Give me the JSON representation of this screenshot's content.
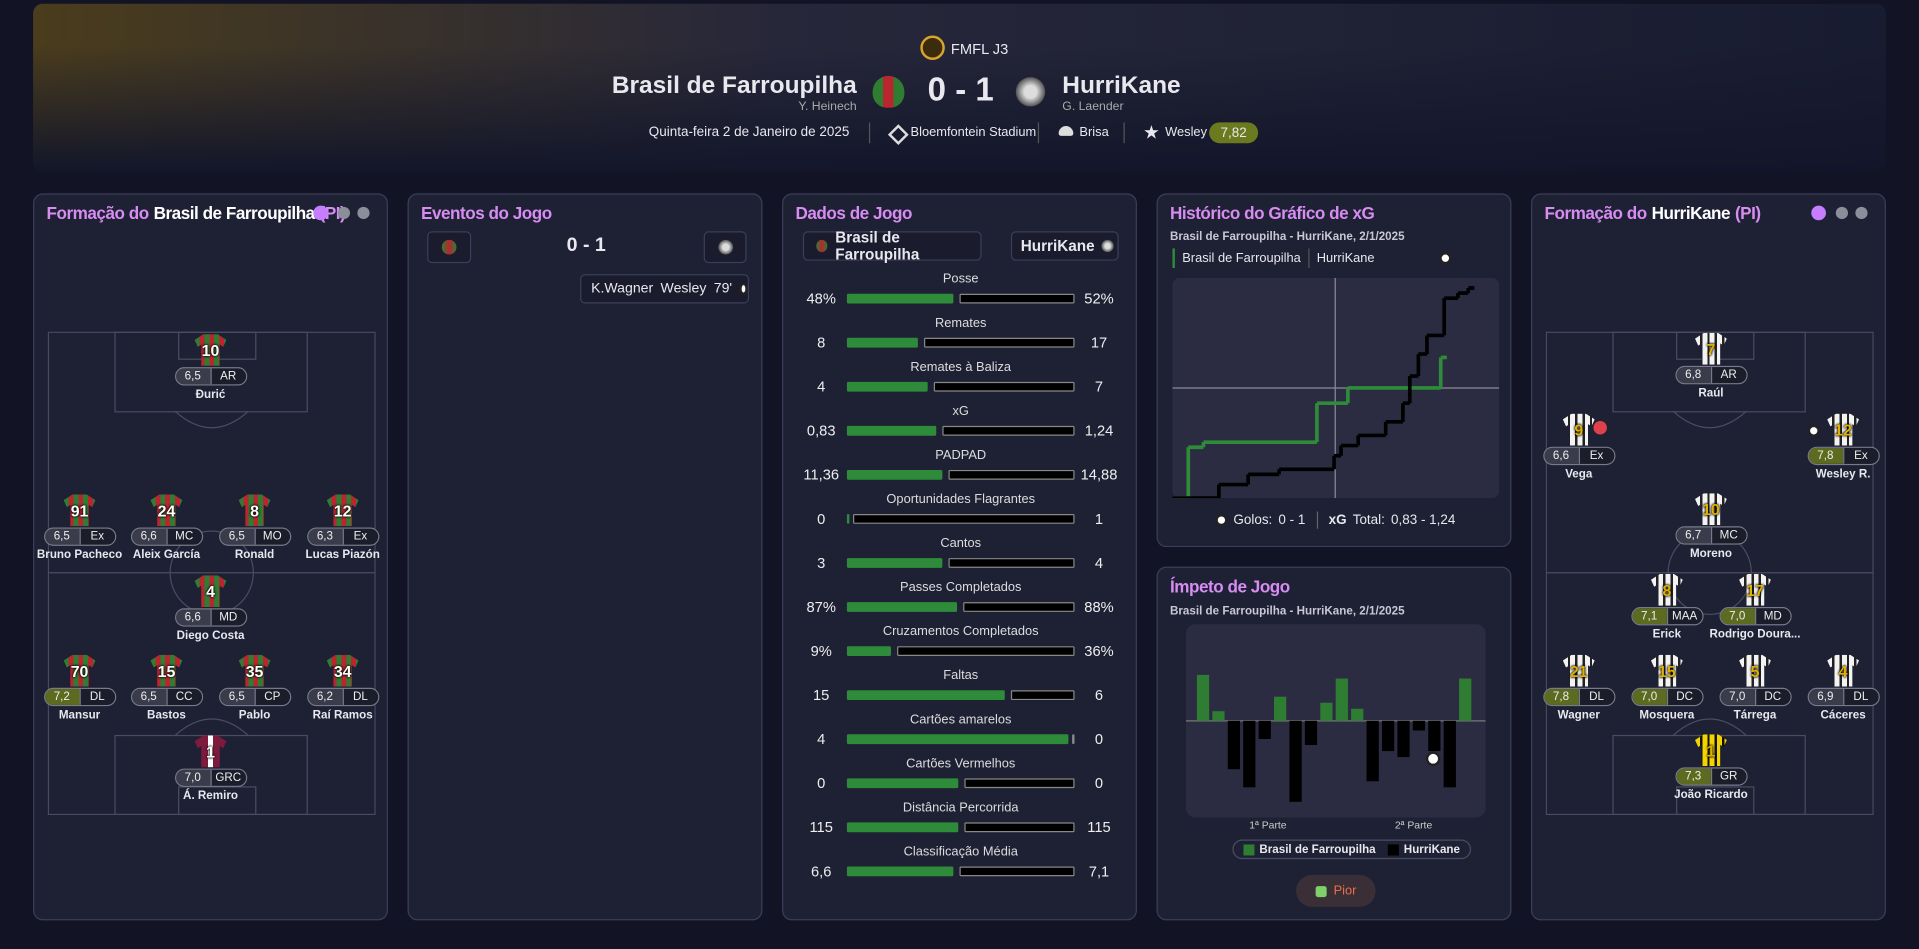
{
  "header": {
    "competition": "FMFL J3",
    "home_team": "Brasil de Farroupilha",
    "home_manager": "Y. Heinech",
    "score": "0 - 1",
    "away_team": "HurriKane",
    "away_manager": "G. Laender",
    "date": "Quinta-feira 2 de Janeiro de 2025",
    "stadium": "Bloemfontein Stadium",
    "weather": "Brisa",
    "player_of_match": "Wesley",
    "player_of_match_rating": "7,82"
  },
  "home_lineup": {
    "title_prefix": "Formação do",
    "team": "Brasil de Farroupilha",
    "title_suffix": "(PI)",
    "players": [
      {
        "number": "10",
        "rating": "6,5",
        "position": "AR",
        "name": "Đurić"
      },
      {
        "number": "91",
        "rating": "6,5",
        "position": "Ex",
        "name": "Bruno Pacheco"
      },
      {
        "number": "24",
        "rating": "6,6",
        "position": "MC",
        "name": "Aleix García"
      },
      {
        "number": "8",
        "rating": "6,5",
        "position": "MO",
        "name": "Ronald"
      },
      {
        "number": "12",
        "rating": "6,3",
        "position": "Ex",
        "name": "Lucas Piazón"
      },
      {
        "number": "4",
        "rating": "6,6",
        "position": "MD",
        "name": "Diego Costa"
      },
      {
        "number": "70",
        "rating": "7,2",
        "position": "DL",
        "name": "Mansur",
        "highlight": true
      },
      {
        "number": "15",
        "rating": "6,5",
        "position": "CC",
        "name": "Bastos"
      },
      {
        "number": "35",
        "rating": "6,5",
        "position": "CP",
        "name": "Pablo"
      },
      {
        "number": "34",
        "rating": "6,2",
        "position": "DL",
        "name": "Raí Ramos"
      },
      {
        "number": "1",
        "rating": "7,0",
        "position": "GRC",
        "name": "Á. Remiro"
      }
    ]
  },
  "events": {
    "title": "Eventos do Jogo",
    "score": "0 - 1",
    "items": [
      {
        "assist": "K.Wagner",
        "scorer": "Wesley",
        "minute": "79'"
      }
    ]
  },
  "stats": {
    "title": "Dados de Jogo",
    "home_team": "Brasil de Farroupilha",
    "away_team": "HurriKane",
    "rows": [
      {
        "label": "Posse",
        "home": {
          "value": 48,
          "label": "48%"
        },
        "away": {
          "value": 52,
          "label": "52%"
        }
      },
      {
        "label": "Remates",
        "home": 8,
        "away": 17
      },
      {
        "label": "Remates à Baliza",
        "home": 4,
        "away": 7
      },
      {
        "label": "xG",
        "home": {
          "value": 0.83,
          "label": "0,83"
        },
        "away": {
          "value": 1.24,
          "label": "1,24"
        }
      },
      {
        "label": "PADPAD",
        "home": {
          "value": 11.36,
          "label": "11,36"
        },
        "away": {
          "value": 14.88,
          "label": "14,88"
        }
      },
      {
        "label": "Oportunidades Flagrantes",
        "home": 0,
        "away": 1
      },
      {
        "label": "Cantos",
        "home": 3,
        "away": 4
      },
      {
        "label": "Passes Completados",
        "home": {
          "value": 87,
          "label": "87%"
        },
        "away": {
          "value": 88,
          "label": "88%"
        }
      },
      {
        "label": "Cruzamentos Completados",
        "home": {
          "value": 9,
          "label": "9%"
        },
        "away": {
          "value": 36,
          "label": "36%"
        }
      },
      {
        "label": "Faltas",
        "home": 15,
        "away": 6
      },
      {
        "label": "Cartões amarelos",
        "home": 4,
        "away": 0
      },
      {
        "label": "Cartões Vermelhos",
        "home": 0,
        "away": 0
      },
      {
        "label": "Distância Percorrida",
        "home": 115,
        "away": 115
      },
      {
        "label": "Classificação Média",
        "home": {
          "value": 6.6,
          "label": "6,6"
        },
        "away": {
          "value": 7.1,
          "label": "7,1"
        }
      }
    ]
  },
  "xg_chart": {
    "title": "Histórico do Gráfico de xG",
    "subtitle": "Brasil de Farroupilha - HurriKane, 2/1/2025",
    "xlim": [
      0,
      95
    ],
    "ylim": [
      0,
      1.3
    ],
    "series": [
      {
        "name": "Brasil de Farroupilha",
        "color": "#2e8b3a",
        "x": [
          0,
          4.6,
          9,
          42,
          51,
          78
        ],
        "values": [
          0,
          0.3,
          0.33,
          0.56,
          0.65,
          0.83
        ]
      },
      {
        "name": "HurriKane",
        "color": "#000000",
        "x": [
          0,
          13.5,
          22,
          31,
          47,
          49,
          54,
          62,
          67,
          69,
          71.5,
          74,
          79,
          83,
          86
        ],
        "values": [
          0,
          0.08,
          0.14,
          0.17,
          0.25,
          0.31,
          0.37,
          0.45,
          0.56,
          0.72,
          0.85,
          0.96,
          1.18,
          1.21,
          1.24
        ]
      }
    ],
    "goals_label": "Golos:",
    "goals": "0 - 1",
    "xg_label": "xG",
    "total_label": "Total:",
    "xg_total": "0,83 - 1,24"
  },
  "momentum": {
    "title": "Ímpeto de Jogo",
    "subtitle": "Brasil de Farroupilha - HurriKane, 2/1/2025",
    "ylim": [
      -80,
      80
    ],
    "values": [
      38,
      8,
      -40,
      -55,
      -15,
      20,
      -67,
      -20,
      15,
      35,
      10,
      -50,
      -25,
      -30,
      -8,
      -25,
      -55,
      35
    ],
    "home_name": "Brasil de Farroupilha",
    "away_name": "HurriKane",
    "home_color": "#2e7d32",
    "away_color": "#000000",
    "halves": [
      "1ª Parte",
      "2ª Parte"
    ],
    "button": "Pior"
  },
  "away_lineup": {
    "title_prefix": "Formação do",
    "team": "HurriKane",
    "title_suffix": "(PI)",
    "players": [
      {
        "number": "7",
        "rating": "6,8",
        "position": "AR",
        "name": "Raúl"
      },
      {
        "number": "9",
        "rating": "6,6",
        "position": "Ex",
        "name": "Vega"
      },
      {
        "number": "12",
        "rating": "7,8",
        "position": "Ex",
        "name": "Wesley R.",
        "highlight": true
      },
      {
        "number": "10",
        "rating": "6,7",
        "position": "MC",
        "name": "Moreno"
      },
      {
        "number": "8",
        "rating": "7,1",
        "position": "MAA",
        "name": "Erick",
        "highlight": true
      },
      {
        "number": "17",
        "rating": "7,0",
        "position": "MD",
        "name": "Rodrigo Doura...",
        "highlight": true
      },
      {
        "number": "21",
        "rating": "7,8",
        "position": "DL",
        "name": "Wagner",
        "highlight": true
      },
      {
        "number": "15",
        "rating": "7,0",
        "position": "DC",
        "name": "Mosquera",
        "highlight": true
      },
      {
        "number": "5",
        "rating": "7,0",
        "position": "DC",
        "name": "Tárrega"
      },
      {
        "number": "4",
        "rating": "6,9",
        "position": "DL",
        "name": "Cáceres"
      },
      {
        "number": "1",
        "rating": "7,3",
        "position": "GR",
        "name": "João Ricardo",
        "highlight": true
      }
    ]
  }
}
